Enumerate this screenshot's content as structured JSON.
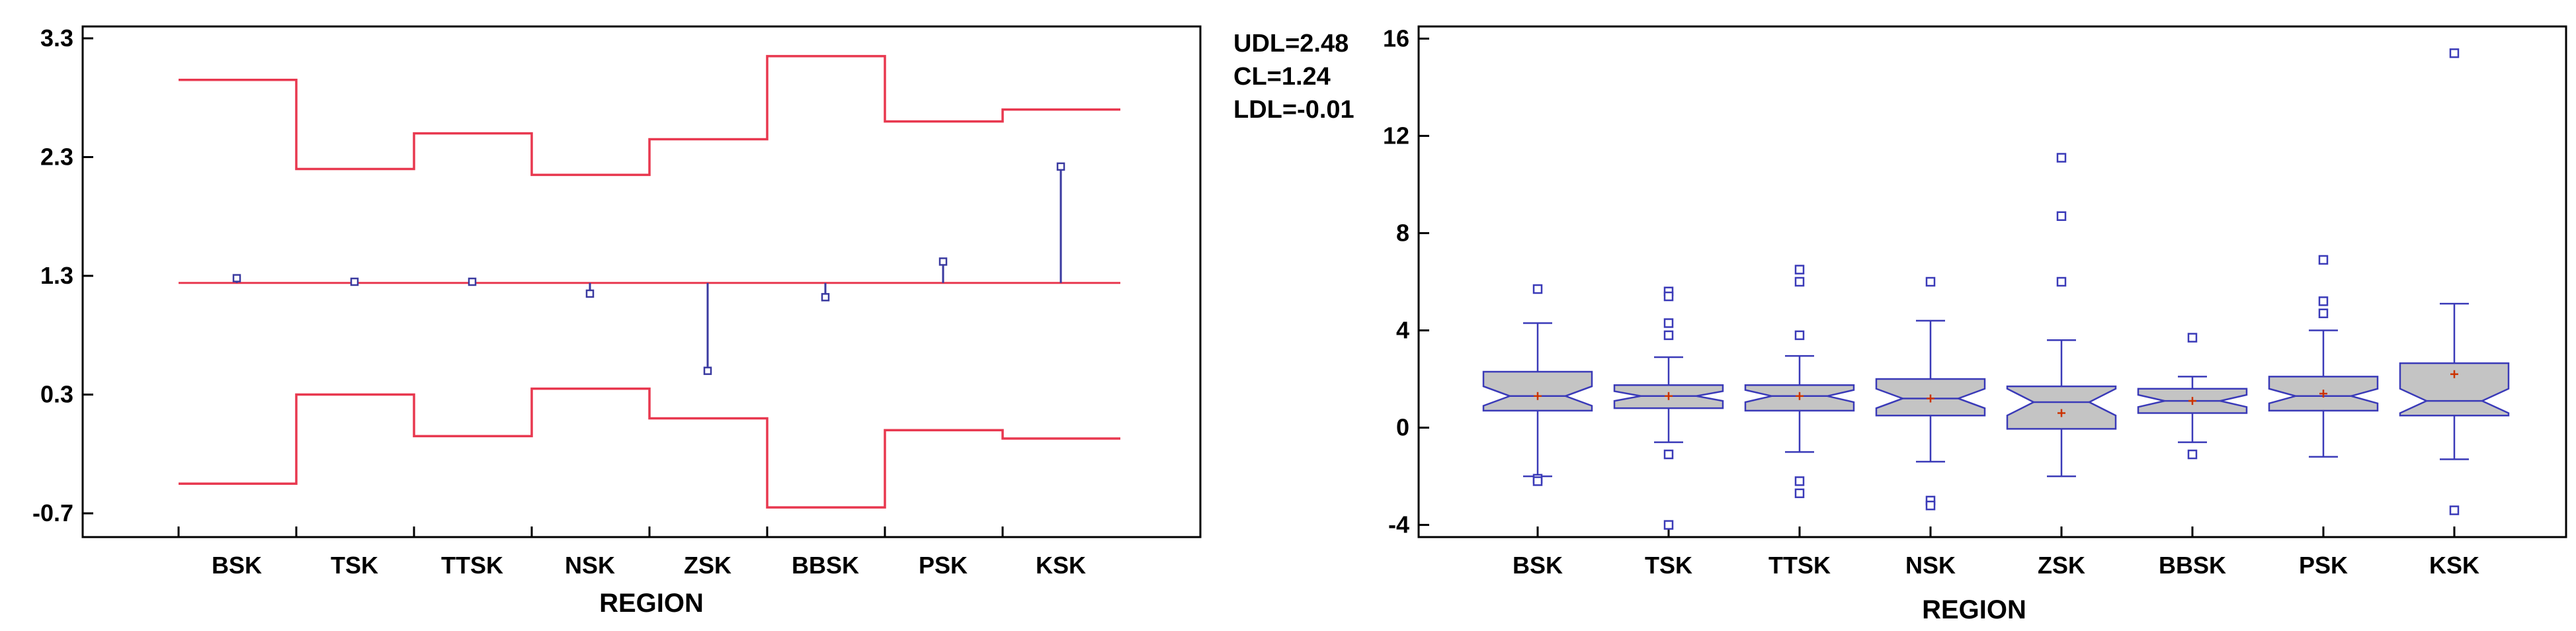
{
  "chart_data": [
    {
      "type": "analysis-of-means",
      "xlabel": "REGION",
      "categories": [
        "BSK",
        "TSK",
        "TTSK",
        "NSK",
        "ZSK",
        "BBSK",
        "PSK",
        "KSK"
      ],
      "ylim": [
        -0.9,
        3.4
      ],
      "yticks": [
        3.3,
        2.3,
        1.3,
        0.3,
        -0.7
      ],
      "ytick_labels": [
        "3.3",
        "2.3",
        "1.3",
        "0.3",
        "-0.7"
      ],
      "center_line": 1.24,
      "control_labels": [
        "UDL=2.48",
        "CL=1.24",
        "LDL=-0.01"
      ],
      "means": [
        1.28,
        1.25,
        1.25,
        1.15,
        0.5,
        1.12,
        1.42,
        2.22
      ],
      "upper_limits": [
        2.95,
        2.2,
        2.5,
        2.15,
        2.45,
        3.15,
        2.6,
        2.7
      ],
      "lower_limits": [
        -0.45,
        0.3,
        -0.05,
        0.35,
        0.1,
        -0.65,
        0.0,
        -0.07
      ],
      "colors": {
        "limits": "#e8384f",
        "center": "#e8384f",
        "means": "#3a3aa0"
      }
    },
    {
      "type": "box",
      "xlabel": "REGION",
      "categories": [
        "BSK",
        "TSK",
        "TTSK",
        "NSK",
        "ZSK",
        "BBSK",
        "PSK",
        "KSK"
      ],
      "ylim": [
        -4.5,
        16.5
      ],
      "yticks": [
        16,
        12,
        8,
        4,
        0,
        -4
      ],
      "ytick_labels": [
        "16",
        "12",
        "8",
        "4",
        "0",
        "-4"
      ],
      "boxes": [
        {
          "min": -2.0,
          "q1": 0.7,
          "median": 1.3,
          "q3": 2.3,
          "max": 4.3,
          "mean": 1.3,
          "notch": [
            0.9,
            1.7
          ],
          "outliers": [
            5.7,
            -2.1,
            -2.2
          ]
        },
        {
          "min": -0.6,
          "q1": 0.8,
          "median": 1.3,
          "q3": 1.75,
          "max": 2.9,
          "mean": 1.3,
          "notch": [
            1.1,
            1.5
          ],
          "outliers": [
            5.6,
            5.4,
            4.3,
            3.8,
            -1.1,
            -4.0
          ]
        },
        {
          "min": -1.0,
          "q1": 0.7,
          "median": 1.3,
          "q3": 1.75,
          "max": 2.95,
          "mean": 1.3,
          "notch": [
            1.05,
            1.55
          ],
          "outliers": [
            6.5,
            6.0,
            3.8,
            -2.2,
            -2.7
          ]
        },
        {
          "min": -1.4,
          "q1": 0.5,
          "median": 1.2,
          "q3": 2.0,
          "max": 4.4,
          "mean": 1.2,
          "notch": [
            0.8,
            1.6
          ],
          "outliers": [
            6.0,
            -3.0,
            -3.2
          ]
        },
        {
          "min": -2.0,
          "q1": -0.05,
          "median": 1.05,
          "q3": 1.7,
          "max": 3.6,
          "mean": 0.6,
          "notch": [
            0.5,
            1.6
          ],
          "outliers": [
            11.1,
            8.7,
            6.0
          ]
        },
        {
          "min": -0.6,
          "q1": 0.6,
          "median": 1.1,
          "q3": 1.6,
          "max": 2.1,
          "mean": 1.1,
          "notch": [
            0.85,
            1.35
          ],
          "outliers": [
            3.7,
            -1.1
          ]
        },
        {
          "min": -1.2,
          "q1": 0.7,
          "median": 1.3,
          "q3": 2.1,
          "max": 4.0,
          "mean": 1.4,
          "notch": [
            1.0,
            1.6
          ],
          "outliers": [
            6.9,
            5.2,
            4.7
          ]
        },
        {
          "min": -1.3,
          "q1": 0.5,
          "median": 1.1,
          "q3": 2.65,
          "max": 5.1,
          "mean": 2.2,
          "notch": [
            0.6,
            1.6
          ],
          "outliers": [
            15.4,
            -3.4
          ]
        }
      ],
      "colors": {
        "box_fill": "#c4c4c4",
        "box_stroke": "#3a3ab8",
        "mean_marker": "#cc3300",
        "outlier": "#3a3ab8"
      }
    }
  ]
}
